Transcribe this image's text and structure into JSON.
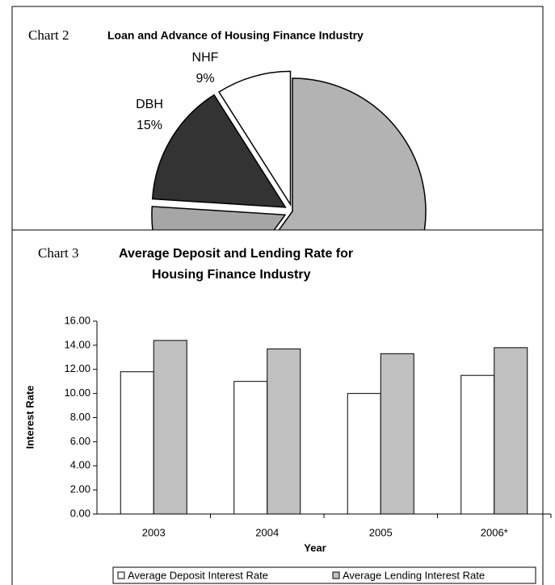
{
  "chart_data": [
    {
      "type": "pie",
      "label": "Chart 2",
      "title": "Loan and Advance of Housing Finance Industry",
      "categories": [
        null,
        null,
        "DBH",
        "NHF"
      ],
      "values": [
        60,
        16,
        15,
        9
      ],
      "value_labels": [
        null,
        null,
        "15%",
        "9%"
      ],
      "colors": [
        "#b3b3b3",
        "#a6a6a6",
        "#333333",
        "#ffffff"
      ]
    },
    {
      "type": "bar",
      "label": "Chart 3",
      "title": [
        "Average Deposit and Lending Rate for",
        "Housing Finance Industry"
      ],
      "x_label": "Year",
      "y_label": "Interest Rate",
      "categories": [
        "2003",
        "2004",
        "2005",
        "2006*"
      ],
      "series": [
        {
          "name": "Average Deposit Interest Rate",
          "color": "#ffffff",
          "values": [
            11.8,
            11.0,
            10.0,
            11.5
          ]
        },
        {
          "name": "Average Lending Interest Rate",
          "color": "#c0c0c0",
          "values": [
            14.4,
            13.7,
            13.3,
            13.8
          ]
        }
      ],
      "ylim": [
        0,
        16
      ],
      "yticks": [
        {
          "value": 0,
          "label": "0.00"
        },
        {
          "value": 2,
          "label": "2.00"
        },
        {
          "value": 4,
          "label": "4.00"
        },
        {
          "value": 6,
          "label": "6.00"
        },
        {
          "value": 8,
          "label": "8.00"
        },
        {
          "value": 10,
          "label": "10.00"
        },
        {
          "value": 12,
          "label": "12.00"
        },
        {
          "value": 14,
          "label": "14.00"
        },
        {
          "value": 16,
          "label": "16.00"
        }
      ],
      "grid": false,
      "legend": "bottom"
    }
  ]
}
